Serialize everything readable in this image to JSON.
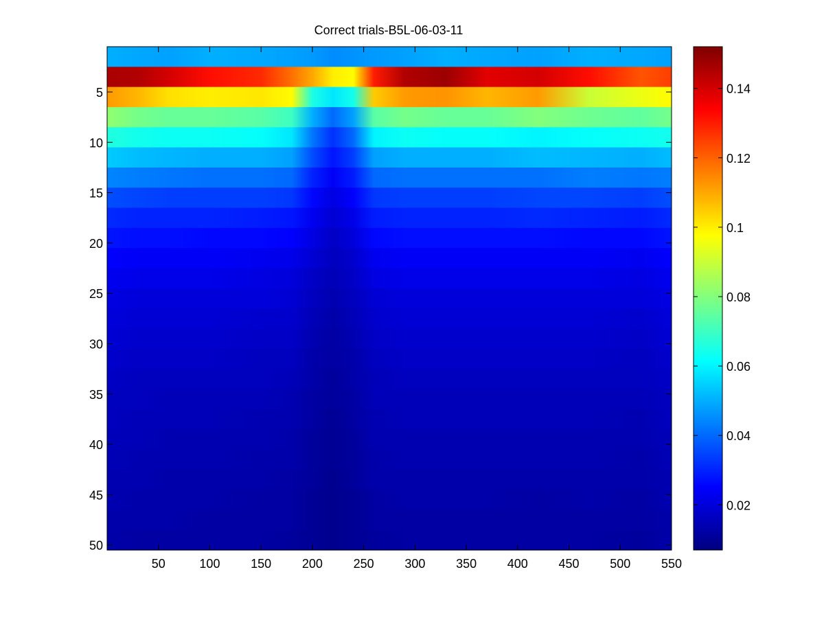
{
  "chart_data": {
    "type": "heatmap",
    "title": "Correct trials-B5L-06-03-11",
    "xlabel": "",
    "ylabel": "",
    "x_ticks": [
      50,
      100,
      150,
      200,
      250,
      300,
      350,
      400,
      450,
      500,
      550
    ],
    "y_ticks": [
      5,
      10,
      15,
      20,
      25,
      30,
      35,
      40,
      45,
      50
    ],
    "xlim": [
      0,
      550
    ],
    "ylim": [
      0.5,
      50.5
    ],
    "y_axis_direction": "reversed",
    "colormap": "jet",
    "clim": [
      0.007,
      0.152
    ],
    "colorbar_ticks": [
      {
        "value": 0.02,
        "label": "0.02"
      },
      {
        "value": 0.04,
        "label": "0.04"
      },
      {
        "value": 0.06,
        "label": "0.06"
      },
      {
        "value": 0.08,
        "label": "0.08"
      },
      {
        "value": 0.1,
        "label": "0.1"
      },
      {
        "value": 0.12,
        "label": "0.12"
      },
      {
        "value": 0.14,
        "label": "0.14"
      }
    ],
    "row_band_height": 2,
    "column_profile_x": [
      0,
      30,
      60,
      100,
      150,
      180,
      200,
      220,
      240,
      260,
      290,
      330,
      370,
      420,
      470,
      520,
      550
    ],
    "rows": [
      {
        "y_from": 0.5,
        "y_to": 2.5,
        "values": [
          0.05,
          0.049,
          0.048,
          0.05,
          0.049,
          0.048,
          0.047,
          0.045,
          0.046,
          0.047,
          0.048,
          0.05,
          0.049,
          0.048,
          0.05,
          0.049,
          0.048
        ]
      },
      {
        "y_from": 2.5,
        "y_to": 4.5,
        "values": [
          0.146,
          0.145,
          0.14,
          0.132,
          0.128,
          0.118,
          0.11,
          0.1,
          0.098,
          0.13,
          0.145,
          0.148,
          0.138,
          0.14,
          0.132,
          0.122,
          0.125
        ]
      },
      {
        "y_from": 4.5,
        "y_to": 6.5,
        "values": [
          0.112,
          0.108,
          0.102,
          0.1,
          0.101,
          0.098,
          0.065,
          0.058,
          0.064,
          0.105,
          0.112,
          0.113,
          0.108,
          0.112,
          0.09,
          0.095,
          0.098
        ]
      },
      {
        "y_from": 6.5,
        "y_to": 8.5,
        "values": [
          0.082,
          0.078,
          0.076,
          0.076,
          0.074,
          0.07,
          0.05,
          0.04,
          0.048,
          0.074,
          0.078,
          0.076,
          0.076,
          0.08,
          0.077,
          0.075,
          0.078
        ]
      },
      {
        "y_from": 8.5,
        "y_to": 10.5,
        "values": [
          0.066,
          0.064,
          0.063,
          0.063,
          0.062,
          0.058,
          0.042,
          0.032,
          0.04,
          0.06,
          0.063,
          0.062,
          0.062,
          0.06,
          0.062,
          0.063,
          0.064
        ]
      },
      {
        "y_from": 10.5,
        "y_to": 12.5,
        "values": [
          0.054,
          0.052,
          0.051,
          0.05,
          0.05,
          0.048,
          0.036,
          0.028,
          0.034,
          0.048,
          0.05,
          0.05,
          0.05,
          0.052,
          0.051,
          0.05,
          0.052
        ]
      },
      {
        "y_from": 12.5,
        "y_to": 14.5,
        "values": [
          0.044,
          0.043,
          0.042,
          0.041,
          0.041,
          0.04,
          0.03,
          0.024,
          0.029,
          0.04,
          0.041,
          0.041,
          0.041,
          0.041,
          0.043,
          0.042,
          0.043
        ]
      },
      {
        "y_from": 14.5,
        "y_to": 16.5,
        "values": [
          0.036,
          0.035,
          0.034,
          0.034,
          0.034,
          0.033,
          0.026,
          0.021,
          0.025,
          0.033,
          0.034,
          0.034,
          0.034,
          0.035,
          0.035,
          0.034,
          0.036
        ]
      },
      {
        "y_from": 16.5,
        "y_to": 18.5,
        "values": [
          0.031,
          0.03,
          0.03,
          0.03,
          0.029,
          0.028,
          0.023,
          0.019,
          0.022,
          0.029,
          0.03,
          0.03,
          0.03,
          0.031,
          0.03,
          0.029,
          0.031
        ]
      },
      {
        "y_from": 18.5,
        "y_to": 20.5,
        "values": [
          0.028,
          0.027,
          0.027,
          0.026,
          0.026,
          0.025,
          0.021,
          0.017,
          0.02,
          0.026,
          0.027,
          0.027,
          0.027,
          0.027,
          0.026,
          0.026,
          0.028
        ]
      },
      {
        "y_from": 20.5,
        "y_to": 22.5,
        "values": [
          0.025,
          0.024,
          0.024,
          0.024,
          0.023,
          0.022,
          0.019,
          0.016,
          0.018,
          0.023,
          0.024,
          0.024,
          0.024,
          0.024,
          0.024,
          0.023,
          0.025
        ]
      },
      {
        "y_from": 22.5,
        "y_to": 24.5,
        "values": [
          0.023,
          0.022,
          0.022,
          0.022,
          0.021,
          0.02,
          0.017,
          0.015,
          0.017,
          0.021,
          0.022,
          0.022,
          0.022,
          0.022,
          0.022,
          0.021,
          0.023
        ]
      },
      {
        "y_from": 24.5,
        "y_to": 26.5,
        "values": [
          0.021,
          0.02,
          0.02,
          0.02,
          0.02,
          0.019,
          0.016,
          0.014,
          0.016,
          0.019,
          0.02,
          0.02,
          0.02,
          0.02,
          0.02,
          0.02,
          0.021
        ]
      },
      {
        "y_from": 26.5,
        "y_to": 28.5,
        "values": [
          0.02,
          0.019,
          0.019,
          0.019,
          0.018,
          0.018,
          0.015,
          0.013,
          0.015,
          0.018,
          0.019,
          0.019,
          0.019,
          0.019,
          0.019,
          0.018,
          0.02
        ]
      },
      {
        "y_from": 28.5,
        "y_to": 30.5,
        "values": [
          0.019,
          0.018,
          0.018,
          0.018,
          0.017,
          0.017,
          0.014,
          0.012,
          0.014,
          0.017,
          0.018,
          0.018,
          0.018,
          0.018,
          0.018,
          0.017,
          0.019
        ]
      },
      {
        "y_from": 30.5,
        "y_to": 32.5,
        "values": [
          0.018,
          0.017,
          0.017,
          0.017,
          0.016,
          0.016,
          0.013,
          0.012,
          0.013,
          0.016,
          0.017,
          0.017,
          0.017,
          0.017,
          0.017,
          0.016,
          0.018
        ]
      },
      {
        "y_from": 32.5,
        "y_to": 34.5,
        "values": [
          0.017,
          0.016,
          0.016,
          0.016,
          0.016,
          0.015,
          0.013,
          0.011,
          0.013,
          0.015,
          0.016,
          0.016,
          0.016,
          0.016,
          0.016,
          0.016,
          0.017
        ]
      },
      {
        "y_from": 34.5,
        "y_to": 36.5,
        "values": [
          0.016,
          0.016,
          0.015,
          0.015,
          0.015,
          0.014,
          0.012,
          0.011,
          0.012,
          0.015,
          0.015,
          0.015,
          0.015,
          0.015,
          0.015,
          0.015,
          0.016
        ]
      },
      {
        "y_from": 36.5,
        "y_to": 38.5,
        "values": [
          0.016,
          0.015,
          0.015,
          0.015,
          0.014,
          0.014,
          0.012,
          0.01,
          0.012,
          0.014,
          0.015,
          0.015,
          0.015,
          0.015,
          0.015,
          0.014,
          0.016
        ]
      },
      {
        "y_from": 38.5,
        "y_to": 40.5,
        "values": [
          0.015,
          0.015,
          0.014,
          0.014,
          0.014,
          0.013,
          0.011,
          0.01,
          0.011,
          0.014,
          0.014,
          0.014,
          0.014,
          0.014,
          0.014,
          0.014,
          0.015
        ]
      },
      {
        "y_from": 40.5,
        "y_to": 42.5,
        "values": [
          0.015,
          0.014,
          0.014,
          0.014,
          0.013,
          0.013,
          0.011,
          0.01,
          0.011,
          0.013,
          0.014,
          0.014,
          0.014,
          0.014,
          0.014,
          0.013,
          0.015
        ]
      },
      {
        "y_from": 42.5,
        "y_to": 44.5,
        "values": [
          0.014,
          0.014,
          0.013,
          0.013,
          0.013,
          0.012,
          0.011,
          0.009,
          0.011,
          0.013,
          0.013,
          0.013,
          0.013,
          0.013,
          0.013,
          0.013,
          0.014
        ]
      },
      {
        "y_from": 44.5,
        "y_to": 46.5,
        "values": [
          0.014,
          0.013,
          0.013,
          0.013,
          0.012,
          0.012,
          0.01,
          0.009,
          0.01,
          0.012,
          0.013,
          0.013,
          0.013,
          0.012,
          0.013,
          0.012,
          0.014
        ]
      },
      {
        "y_from": 46.5,
        "y_to": 48.5,
        "values": [
          0.013,
          0.013,
          0.013,
          0.012,
          0.012,
          0.012,
          0.01,
          0.009,
          0.01,
          0.012,
          0.012,
          0.012,
          0.012,
          0.012,
          0.012,
          0.012,
          0.013
        ]
      },
      {
        "y_from": 48.5,
        "y_to": 50.5,
        "values": [
          0.013,
          0.012,
          0.012,
          0.012,
          0.012,
          0.011,
          0.01,
          0.009,
          0.01,
          0.011,
          0.012,
          0.012,
          0.012,
          0.012,
          0.012,
          0.011,
          0.013
        ]
      }
    ],
    "grid": false,
    "legend": "none",
    "colorbar": "right"
  }
}
